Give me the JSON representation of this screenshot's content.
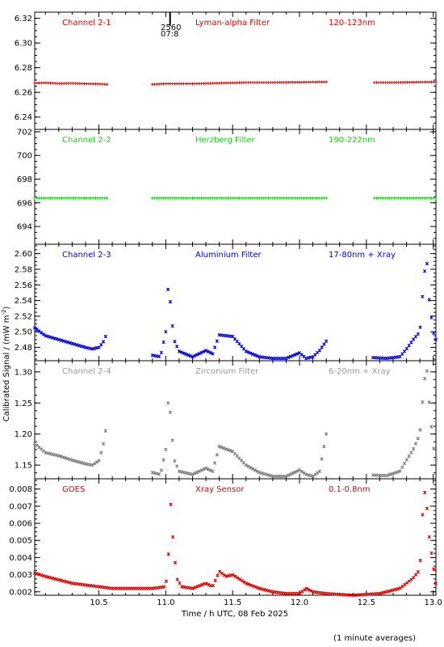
{
  "figure": {
    "ylabel": "Calibrated Signal / (mW m",
    "ylabel_sup": "-2",
    "ylabel_close": ")",
    "xlabel": "Time / h UTC, 08 Feb 2025",
    "footnote": "(1 minute averages)",
    "top_marker": {
      "time": 11.02,
      "text1": "2560",
      "text2": "07:8"
    }
  },
  "chart_data": {
    "type": "scatter",
    "xlim": [
      10.02,
      13.02
    ],
    "xticks": [
      10.5,
      11.0,
      11.5,
      12.0,
      12.5,
      13.0
    ],
    "xtick_labels": [
      "10.5",
      "11.0",
      "11.5",
      "12.0",
      "12.5",
      "13.0"
    ],
    "panels": [
      {
        "channel": "Channel 2-1",
        "filter": "Lyman-alpha Filter",
        "band": "120-123nm",
        "color": "#e00000",
        "label_color": "#e00000",
        "marker": "+",
        "ylim": [
          6.23,
          6.325
        ],
        "yticks": [
          6.24,
          6.26,
          6.28,
          6.3,
          6.32
        ],
        "ytick_labels": [
          "6.24",
          "6.26",
          "6.28",
          "6.30",
          "6.32"
        ],
        "series": [
          {
            "x": [
              10.02,
              10.1,
              10.2,
              10.3,
              10.4,
              10.5,
              10.56
            ],
            "y": [
              6.2675,
              6.2678,
              6.2672,
              6.2674,
              6.267,
              6.2668,
              6.2665
            ]
          },
          {
            "x": [
              10.9,
              11.0,
              11.2,
              11.4,
              11.6,
              11.8,
              12.0,
              12.2
            ],
            "y": [
              6.2665,
              6.267,
              6.267,
              6.2675,
              6.268,
              6.268,
              6.2682,
              6.2685
            ]
          },
          {
            "x": [
              12.56,
              12.7,
              12.85,
              13.02
            ],
            "y": [
              6.268,
              6.268,
              6.2682,
              6.2685
            ]
          }
        ]
      },
      {
        "channel": "Channel 2-2",
        "filter": "Herzberg Filter",
        "band": "190-222nm",
        "color": "#00e000",
        "label_color": "#00e000",
        "marker": "+",
        "ylim": [
          692.5,
          702.2
        ],
        "yticks": [
          694,
          696,
          698,
          700,
          702
        ],
        "ytick_labels": [
          "694",
          "696",
          "698",
          "700",
          "702"
        ],
        "series": [
          {
            "x": [
              10.02,
              10.3,
              10.56
            ],
            "y": [
              696.4,
              696.4,
              696.4
            ]
          },
          {
            "x": [
              10.9,
              11.5,
              12.2
            ],
            "y": [
              696.4,
              696.4,
              696.4
            ]
          },
          {
            "x": [
              12.56,
              12.8,
              13.02
            ],
            "y": [
              696.4,
              696.4,
              696.4
            ]
          }
        ]
      },
      {
        "channel": "Channel 2-3",
        "filter": "Aluminium Filter",
        "band": "17-80nm + Xray",
        "color": "#0000e0",
        "label_color": "#0000e0",
        "marker": "x",
        "ylim": [
          2.463,
          2.612
        ],
        "yticks": [
          2.48,
          2.5,
          2.52,
          2.54,
          2.56,
          2.58,
          2.6
        ],
        "ytick_labels": [
          "2.48",
          "2.50",
          "2.52",
          "2.54",
          "2.56",
          "2.58",
          "2.60"
        ],
        "series": [
          {
            "x": [
              10.02,
              10.1,
              10.2,
              10.3,
              10.4,
              10.45,
              10.5,
              10.53,
              10.55
            ],
            "y": [
              2.505,
              2.495,
              2.49,
              2.485,
              2.48,
              2.478,
              2.48,
              2.486,
              2.494
            ]
          },
          {
            "x": [
              10.9,
              10.96,
              11.0,
              11.02,
              11.04,
              11.06,
              11.1,
              11.2,
              11.3,
              11.35,
              11.4,
              11.5,
              11.6,
              11.7,
              11.8,
              11.9,
              12.0,
              12.05,
              12.1,
              12.15,
              12.2
            ],
            "y": [
              2.47,
              2.468,
              2.5,
              2.565,
              2.525,
              2.49,
              2.475,
              2.468,
              2.476,
              2.472,
              2.496,
              2.494,
              2.475,
              2.468,
              2.466,
              2.466,
              2.473,
              2.466,
              2.468,
              2.476,
              2.488
            ]
          },
          {
            "x": [
              12.55,
              12.65,
              12.75,
              12.8,
              12.85,
              12.9,
              12.93,
              12.95,
              12.97,
              13.0,
              13.02
            ],
            "y": [
              2.467,
              2.466,
              2.468,
              2.478,
              2.49,
              2.5,
              2.57,
              2.595,
              2.54,
              2.5,
              2.49
            ]
          }
        ]
      },
      {
        "channel": "Channel 2-4",
        "filter": "Zirconium Filter",
        "band": "6-20nm + Xray",
        "color": "#7f7f7f",
        "label_color": "#9a9a9a",
        "marker": "x",
        "ylim": [
          1.128,
          1.318
        ],
        "yticks": [
          1.15,
          1.2,
          1.25,
          1.3
        ],
        "ytick_labels": [
          "1.15",
          "1.20",
          "1.25",
          "1.30"
        ],
        "series": [
          {
            "x": [
              10.02,
              10.1,
              10.2,
              10.3,
              10.4,
              10.45,
              10.5,
              10.53,
              10.55
            ],
            "y": [
              1.185,
              1.17,
              1.165,
              1.158,
              1.152,
              1.15,
              1.157,
              1.18,
              1.205
            ]
          },
          {
            "x": [
              10.9,
              10.96,
              11.0,
              11.02,
              11.04,
              11.06,
              11.1,
              11.2,
              11.3,
              11.35,
              11.4,
              11.5,
              11.6,
              11.7,
              11.8,
              11.9,
              12.0,
              12.05,
              12.1,
              12.15,
              12.2
            ],
            "y": [
              1.138,
              1.135,
              1.175,
              1.265,
              1.22,
              1.16,
              1.14,
              1.135,
              1.145,
              1.14,
              1.18,
              1.172,
              1.15,
              1.138,
              1.132,
              1.132,
              1.142,
              1.135,
              1.132,
              1.14,
              1.2
            ]
          },
          {
            "x": [
              12.55,
              12.65,
              12.75,
              12.8,
              12.85,
              12.9,
              12.93,
              12.95,
              12.97,
              13.0,
              13.02
            ],
            "y": [
              1.134,
              1.133,
              1.14,
              1.158,
              1.175,
              1.2,
              1.28,
              1.31,
              1.25,
              1.18,
              1.16
            ]
          }
        ]
      },
      {
        "channel": "GOES",
        "filter": "Xray Sensor",
        "band": "0.1-0.8nm",
        "color": "#e00000",
        "label_color": "#e00000",
        "marker": "x",
        "ylim": [
          0.0018,
          0.0086
        ],
        "yticks": [
          0.002,
          0.003,
          0.004,
          0.005,
          0.006,
          0.007,
          0.008
        ],
        "ytick_labels": [
          "0.002",
          "0.003",
          "0.004",
          "0.005",
          "0.006",
          "0.007",
          "0.008"
        ],
        "series": [
          {
            "x": [
              10.02,
              10.1,
              10.2,
              10.3,
              10.4,
              10.5,
              10.6,
              10.7,
              10.8,
              10.9,
              11.0,
              11.02,
              11.03,
              11.05,
              11.08,
              11.12,
              11.2,
              11.3,
              11.35,
              11.4,
              11.45,
              11.5,
              11.6,
              11.7,
              11.8,
              11.9,
              12.0,
              12.05,
              12.1,
              12.2,
              12.4,
              12.6,
              12.75,
              12.85,
              12.9,
              12.93,
              12.95,
              12.97,
              13.0,
              13.02
            ],
            "y": [
              0.0031,
              0.0029,
              0.0027,
              0.0025,
              0.0024,
              0.0023,
              0.0022,
              0.0022,
              0.0022,
              0.0022,
              0.0023,
              0.0042,
              0.0079,
              0.0055,
              0.0028,
              0.0023,
              0.0022,
              0.0025,
              0.0023,
              0.0032,
              0.0029,
              0.003,
              0.0025,
              0.0022,
              0.002,
              0.0019,
              0.0019,
              0.0022,
              0.002,
              0.0019,
              0.0018,
              0.0019,
              0.0022,
              0.0028,
              0.0033,
              0.0081,
              0.0072,
              0.0052,
              0.0035,
              0.0025
            ]
          }
        ]
      }
    ]
  }
}
